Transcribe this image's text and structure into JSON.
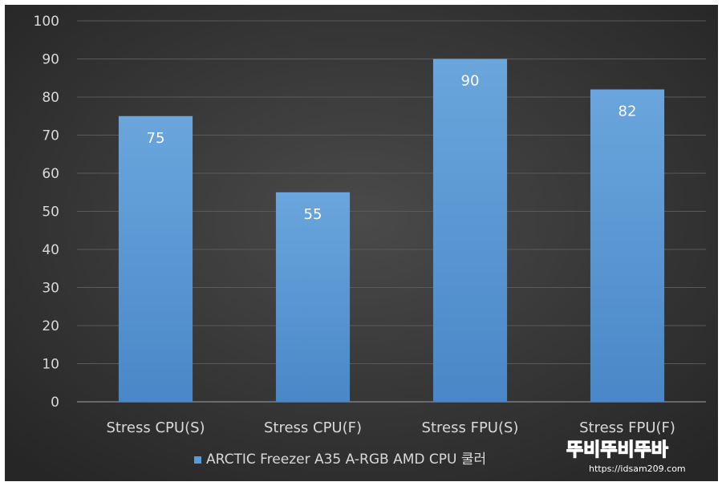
{
  "chart_data": {
    "type": "bar",
    "categories": [
      "Stress CPU(S)",
      "Stress CPU(F)",
      "Stress FPU(S)",
      "Stress FPU(F)"
    ],
    "series": [
      {
        "name": "ARCTIC Freezer A35 A-RGB AMD CPU 쿨러",
        "values": [
          75,
          55,
          90,
          82
        ]
      }
    ],
    "title": "",
    "xlabel": "",
    "ylabel": "",
    "ylim": [
      0,
      100
    ],
    "yticks": [
      0,
      10,
      20,
      30,
      40,
      50,
      60,
      70,
      80,
      90,
      100
    ],
    "grid": true,
    "legend": "bottom-center",
    "colors": {
      "background": "#3a3a3a",
      "bar": "#5b9bd5",
      "grid": "#5a5a5a",
      "text": "#d9d9d9",
      "label": "#ffffff"
    }
  },
  "watermark": {
    "logo_text": "뚜비뚜비뚜바",
    "url_text": "https://idsam209.com"
  }
}
